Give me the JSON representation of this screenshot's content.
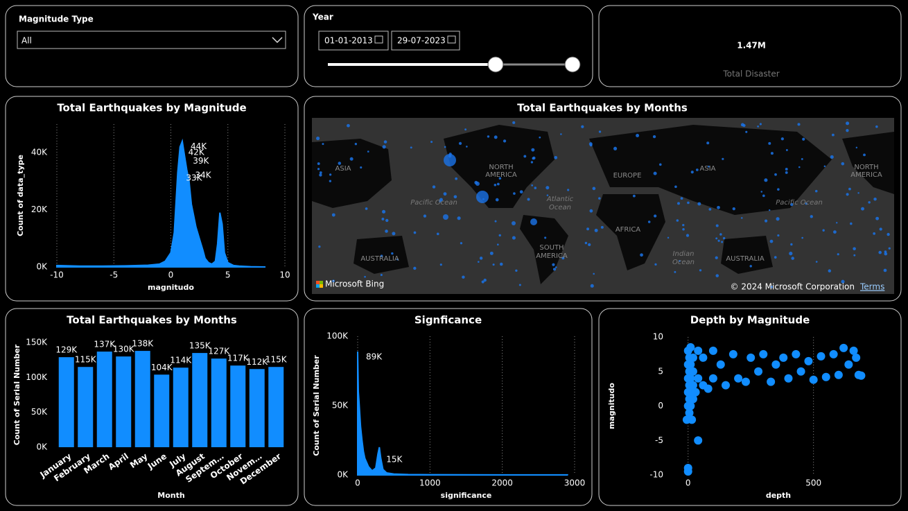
{
  "slicers": {
    "magnitude_type": {
      "title": "Magnitude Type",
      "value": "All"
    },
    "year": {
      "title": "Year",
      "start": "01-01-2013",
      "end": "29-07-2023"
    }
  },
  "card": {
    "value": "1.47M",
    "label": "Total Disaster"
  },
  "map": {
    "title": "Total Earthquakes by Months",
    "labels": [
      "ASIA",
      "NORTH",
      "AMERICA",
      "EUROPE",
      "ASIA",
      "NORTH",
      "AMERICA",
      "Pacific Ocean",
      "Atlantic",
      "Ocean",
      "Pacific Ocean",
      "AFRICA",
      "SOUTH",
      "AMERICA",
      "Indian",
      "Ocean",
      "AUSTRALIA",
      "AUSTRALIA"
    ],
    "attribution": "Microsoft Bing",
    "copyright": "© 2024 Microsoft Corporation",
    "terms": "Terms"
  },
  "chart_data": [
    {
      "type": "area",
      "title": "Total Earthquakes by Magnitude",
      "x_label": "magnitudo",
      "y_label": "Count of data_type",
      "color": "#118dff",
      "x": [
        -10,
        -8,
        -6,
        -4,
        -2,
        -1,
        -0.5,
        0,
        0.3,
        0.6,
        0.8,
        1.0,
        1.2,
        1.4,
        1.6,
        1.8,
        2.0,
        2.2,
        2.5,
        2.8,
        3.0,
        3.3,
        3.6,
        3.9,
        4.1,
        4.3,
        4.5,
        4.7,
        5.0,
        5.5,
        6,
        7,
        8.3
      ],
      "values": [
        500,
        300,
        300,
        400,
        600,
        1000,
        2000,
        5000,
        12000,
        33000,
        42000,
        44000,
        39000,
        34000,
        30000,
        22000,
        18000,
        14000,
        10000,
        6000,
        3000,
        1500,
        1000,
        2000,
        8000,
        19000,
        15000,
        5000,
        1500,
        500,
        300,
        100,
        0
      ],
      "value_labels": [
        null,
        null,
        null,
        null,
        null,
        null,
        null,
        null,
        null,
        "33K",
        "42K",
        "44K",
        "39K",
        "34K",
        null,
        null,
        null,
        null,
        null,
        null,
        null,
        null,
        null,
        null,
        null,
        null,
        null,
        null,
        null,
        null,
        null,
        null,
        null
      ],
      "xlim": [
        -10,
        10
      ],
      "xticks": [
        -10,
        -5,
        0,
        5,
        10
      ],
      "ylim": [
        0,
        50000
      ],
      "yticks": [
        {
          "value": 0,
          "label": "0K"
        },
        {
          "value": 20000,
          "label": "20K"
        },
        {
          "value": 40000,
          "label": "40K"
        }
      ],
      "grid": "x"
    },
    {
      "type": "bar",
      "title": "Total Earthquakes by Months",
      "x_label": "Month",
      "y_label": "Count of Serial Number",
      "color": "#118dff",
      "categories": [
        "January",
        "February",
        "March",
        "April",
        "May",
        "June",
        "July",
        "August",
        "Septem…",
        "October",
        "Novem…",
        "December"
      ],
      "values": [
        129000,
        115000,
        137000,
        130000,
        138000,
        104000,
        114000,
        135000,
        127000,
        117000,
        112000,
        115000
      ],
      "value_labels": [
        "129K",
        "115K",
        "137K",
        "130K",
        "138K",
        "104K",
        "114K",
        "135K",
        "127K",
        "117K",
        "112K",
        "115K"
      ],
      "ylim": [
        0,
        150000
      ],
      "yticks": [
        {
          "value": 0,
          "label": "0K"
        },
        {
          "value": 50000,
          "label": "50K"
        },
        {
          "value": 100000,
          "label": "100K"
        },
        {
          "value": 150000,
          "label": "150K"
        }
      ]
    },
    {
      "type": "area",
      "title": "Signficance",
      "x_label": "significance",
      "y_label": "Count of Serial Number",
      "color": "#118dff",
      "x": [
        0,
        10,
        20,
        40,
        60,
        80,
        100,
        150,
        200,
        250,
        280,
        300,
        320,
        350,
        400,
        500,
        700,
        1000,
        1500,
        2000,
        2500,
        2900
      ],
      "values": [
        89000,
        60000,
        52000,
        35000,
        25000,
        17000,
        12000,
        6000,
        3000,
        5000,
        15000,
        20000,
        12000,
        4000,
        1500,
        700,
        300,
        200,
        100,
        50,
        50,
        30
      ],
      "value_labels": [
        "89K",
        null,
        null,
        null,
        null,
        null,
        null,
        null,
        null,
        null,
        "15K",
        null,
        null,
        null,
        null,
        null,
        null,
        null,
        null,
        null,
        null,
        null
      ],
      "xlim": [
        0,
        3000
      ],
      "xticks": [
        0,
        1000,
        2000,
        3000
      ],
      "ylim": [
        0,
        100000
      ],
      "yticks": [
        {
          "value": 0,
          "label": "0K"
        },
        {
          "value": 50000,
          "label": "50K"
        },
        {
          "value": 100000,
          "label": "100K"
        }
      ],
      "grid": "x"
    },
    {
      "type": "scatter",
      "title": "Depth by Magnitude",
      "x_label": "depth",
      "y_label": "magnitudo",
      "color": "#118dff",
      "x": [
        0,
        0,
        40,
        -5,
        0,
        0,
        0,
        0,
        0,
        5,
        5,
        5,
        5,
        5,
        10,
        10,
        10,
        10,
        10,
        15,
        20,
        20,
        20,
        20,
        30,
        40,
        40,
        60,
        60,
        80,
        100,
        100,
        130,
        150,
        180,
        200,
        230,
        250,
        280,
        300,
        330,
        350,
        380,
        400,
        430,
        450,
        480,
        500,
        530,
        550,
        580,
        600,
        620,
        640,
        660,
        670,
        680,
        690
      ],
      "values": [
        -9.5,
        -9,
        -5,
        -2,
        0,
        2,
        4,
        6,
        8,
        -1,
        1,
        3,
        5,
        7,
        8.5,
        0,
        2,
        4,
        6,
        -2,
        1,
        3,
        5,
        7,
        2,
        8,
        4,
        3,
        7,
        2.5,
        8,
        4,
        6,
        3,
        7.5,
        4,
        3.5,
        7,
        5,
        7.5,
        3.5,
        6,
        7,
        4,
        7.5,
        5,
        6.5,
        3.8,
        7.2,
        4.2,
        7.5,
        4.5,
        8.4,
        6,
        8,
        7,
        4.5,
        4.4
      ],
      "xlim": [
        -60,
        780
      ],
      "xticks": [
        0,
        500
      ],
      "ylim": [
        -10,
        10
      ],
      "yticks": [
        -10,
        -5,
        0,
        5,
        10
      ],
      "grid": "x"
    }
  ]
}
